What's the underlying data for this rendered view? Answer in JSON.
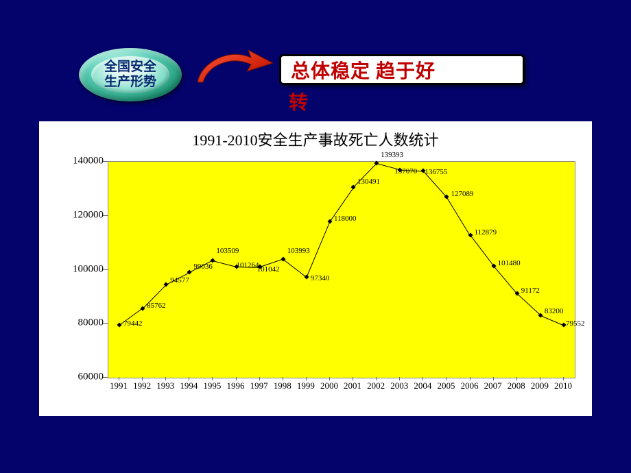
{
  "background_color": "#03036b",
  "badge": {
    "line1": "全国安全",
    "line2": "生产形势"
  },
  "callout": {
    "main": "总体稳定  趋于好",
    "extra": "转",
    "text_color": "#c00000",
    "bg": "#ffffff"
  },
  "chart": {
    "type": "line",
    "title": "1991-2010安全生产事故死亡人数统计",
    "title_fontsize": 22,
    "background_color": "#ffffff",
    "plot_bg": "#ffff00",
    "plot_border": "#888888",
    "line_color": "#000000",
    "marker_style": "diamond",
    "marker_size": 5,
    "xlim": [
      1991,
      2010
    ],
    "ylim": [
      60000,
      140000
    ],
    "ytick_step": 20000,
    "ylabels": [
      "60000",
      "80000",
      "100000",
      "120000",
      "140000"
    ],
    "yticks": [
      60000,
      80000,
      100000,
      120000,
      140000
    ],
    "years": [
      1991,
      1992,
      1993,
      1994,
      1995,
      1996,
      1997,
      1998,
      1999,
      2000,
      2001,
      2002,
      2003,
      2004,
      2005,
      2006,
      2007,
      2008,
      2009,
      2010
    ],
    "values": [
      79442,
      85762,
      94577,
      99036,
      103509,
      101264,
      101042,
      103993,
      97340,
      118000,
      130491,
      139393,
      137070,
      136755,
      127089,
      112879,
      101480,
      91172,
      83200,
      79552
    ],
    "label_fontsize": 11,
    "axis_fontsize": 15,
    "xaxis_fontsize": 13
  }
}
